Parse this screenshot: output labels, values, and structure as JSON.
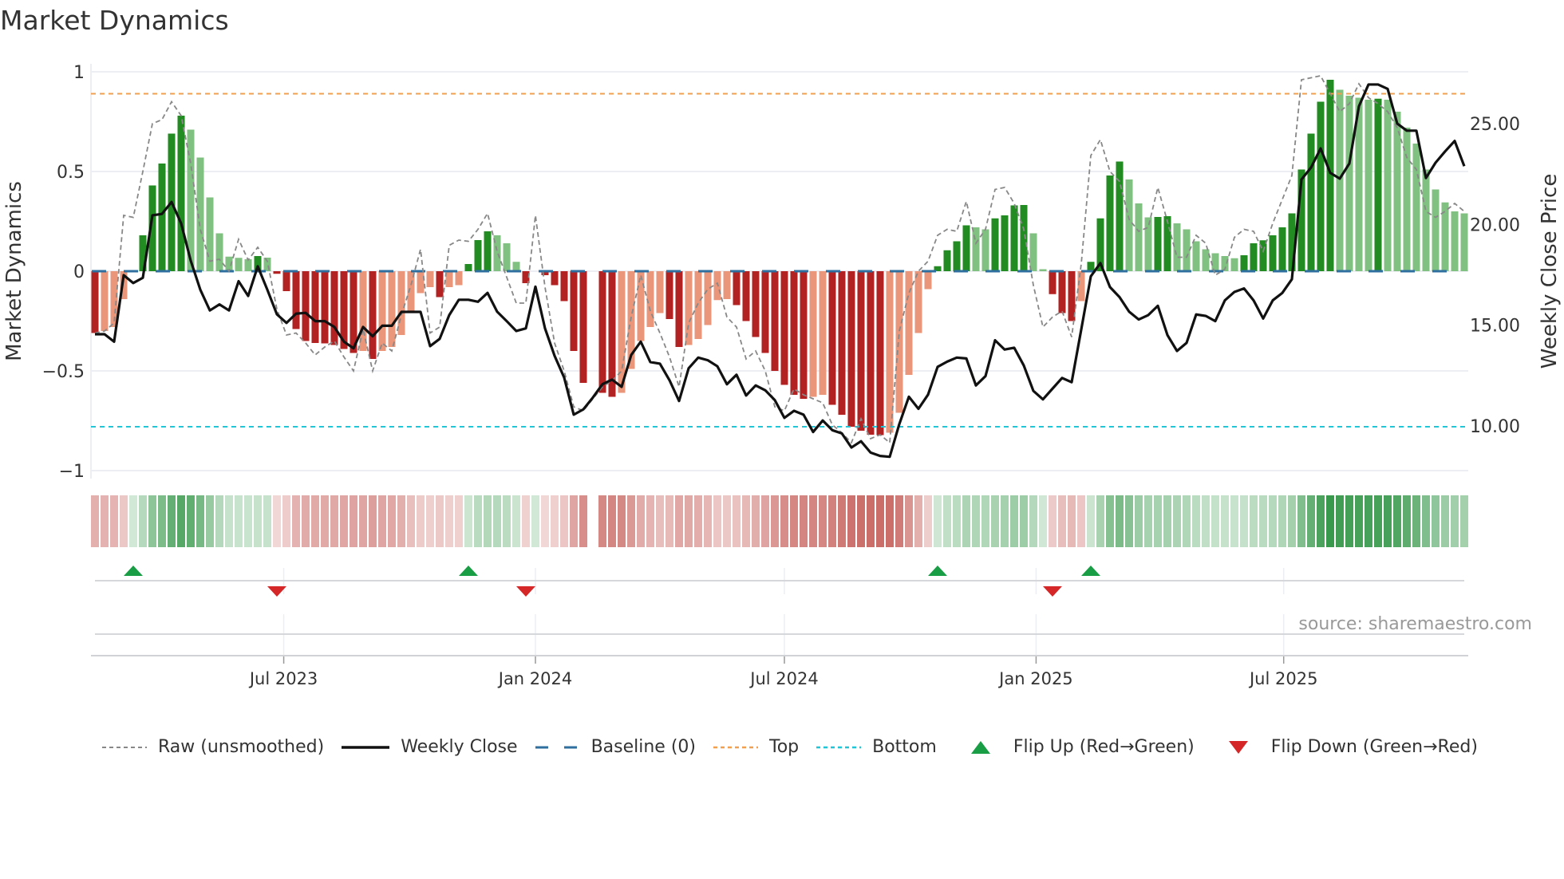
{
  "chart_data": {
    "type": "bar",
    "title": "Market Dynamics",
    "ylabel": "Market Dynamics",
    "y2label": "Weekly Close Price",
    "ylim": [
      -1,
      1
    ],
    "y2lim": [
      7.5,
      28
    ],
    "yticks": [
      {
        "v": 1,
        "label": "1"
      },
      {
        "v": 0.5,
        "label": "0.5"
      },
      {
        "v": 0,
        "label": "0"
      },
      {
        "v": -0.5,
        "label": "−0.5"
      },
      {
        "v": -1,
        "label": "−1"
      }
    ],
    "y2ticks": [
      {
        "v": 25,
        "label": "25.00"
      },
      {
        "v": 20,
        "label": "20.00"
      },
      {
        "v": 15,
        "label": "15.00"
      },
      {
        "v": 10,
        "label": "10.00"
      }
    ],
    "start_week": "2023-02-13",
    "frequency": "weekly",
    "xticks": [
      {
        "date": "2023-07-01",
        "label": "Jul 2023"
      },
      {
        "date": "2024-01-01",
        "label": "Jan 2024"
      },
      {
        "date": "2024-07-01",
        "label": "Jul 2024"
      },
      {
        "date": "2025-01-01",
        "label": "Jan 2025"
      },
      {
        "date": "2025-07-01",
        "label": "Jul 2025"
      }
    ],
    "top_level": 0.89,
    "bottom_level": -0.78,
    "baseline": 0,
    "dynamics": [
      -0.31,
      -0.3,
      -0.28,
      -0.14,
      0,
      0.18,
      0.43,
      0.54,
      0.69,
      0.78,
      0.71,
      0.57,
      0.37,
      0.19,
      0.073,
      0.067,
      0.06,
      0.076,
      0.068,
      -0.013,
      -0.1,
      -0.29,
      -0.35,
      -0.36,
      -0.362,
      -0.37,
      -0.39,
      -0.41,
      -0.4,
      -0.44,
      -0.4,
      -0.38,
      -0.32,
      -0.2,
      -0.11,
      -0.08,
      -0.13,
      -0.08,
      -0.07,
      0.036,
      0.156,
      0.2,
      0.18,
      0.14,
      0.047,
      -0.06,
      0,
      -0.02,
      -0.07,
      -0.15,
      -0.4,
      -0.56,
      null,
      -0.61,
      -0.63,
      -0.61,
      -0.49,
      -0.35,
      -0.28,
      -0.21,
      -0.24,
      -0.38,
      -0.37,
      -0.34,
      -0.27,
      -0.145,
      -0.14,
      -0.17,
      -0.25,
      -0.33,
      -0.41,
      -0.5,
      -0.57,
      -0.62,
      -0.64,
      -0.63,
      -0.62,
      -0.67,
      -0.72,
      -0.78,
      -0.8,
      -0.82,
      -0.822,
      -0.81,
      -0.71,
      -0.52,
      -0.31,
      -0.09,
      0.025,
      0.105,
      0.15,
      0.23,
      0.22,
      0.21,
      0.265,
      0.28,
      0.33,
      0.332,
      0.19,
      0.01,
      -0.115,
      -0.21,
      -0.25,
      -0.15,
      0.047,
      0.265,
      0.48,
      0.55,
      0.46,
      0.34,
      0.27,
      0.272,
      0.276,
      0.24,
      0.21,
      0.15,
      0.11,
      0.09,
      0.076,
      0.065,
      0.08,
      0.14,
      0.155,
      0.18,
      0.22,
      0.29,
      0.51,
      0.69,
      0.85,
      0.96,
      0.91,
      0.88,
      0.87,
      0.86,
      0.865,
      0.86,
      0.8,
      0.72,
      0.64,
      0.51,
      0.41,
      0.345,
      0.3,
      0.29
    ],
    "raw": [
      -0.31,
      -0.3,
      -0.26,
      0.28,
      0.27,
      0.5,
      0.74,
      0.76,
      0.85,
      0.78,
      0.54,
      0.21,
      0.05,
      0.06,
      0.0,
      0.16,
      0.056,
      0.12,
      0.05,
      -0.19,
      -0.32,
      -0.31,
      -0.36,
      -0.42,
      -0.38,
      -0.35,
      -0.43,
      -0.5,
      -0.29,
      -0.5,
      -0.36,
      -0.4,
      -0.22,
      -0.07,
      0.11,
      -0.31,
      -0.28,
      0.13,
      0.156,
      0.15,
      0.21,
      0.29,
      0.1,
      -0.03,
      -0.16,
      -0.16,
      0.28,
      -0.08,
      -0.36,
      -0.5,
      -0.68,
      -0.7,
      -0.64,
      -0.58,
      -0.55,
      -0.5,
      -0.23,
      -0.02,
      -0.2,
      -0.31,
      -0.43,
      -0.58,
      -0.26,
      -0.16,
      -0.09,
      -0.06,
      -0.23,
      -0.28,
      -0.44,
      -0.4,
      -0.5,
      -0.68,
      -0.7,
      -0.59,
      -0.62,
      -0.64,
      -0.66,
      -0.77,
      -0.81,
      -0.86,
      -0.74,
      -0.84,
      -0.82,
      -0.86,
      -0.3,
      -0.11,
      0.0,
      0.05,
      0.18,
      0.21,
      0.2,
      0.35,
      0.14,
      0.21,
      0.41,
      0.42,
      0.34,
      0.21,
      -0.07,
      -0.28,
      -0.23,
      -0.2,
      -0.33,
      0.036,
      0.58,
      0.66,
      0.5,
      0.45,
      0.26,
      0.2,
      0.22,
      0.42,
      0.25,
      0.07,
      0.07,
      0.18,
      0.14,
      -0.02,
      0.01,
      0.17,
      0.21,
      0.2,
      0.1,
      0.24,
      0.36,
      0.48,
      0.96,
      0.97,
      0.98,
      0.89,
      0.8,
      0.84,
      0.94,
      0.87,
      0.84,
      0.8,
      0.72,
      0.57,
      0.51,
      0.3,
      0.27,
      0.3,
      0.34,
      0.3
    ],
    "close": [
      14.55,
      14.55,
      14.18,
      17.48,
      17.09,
      17.35,
      20.45,
      20.52,
      21.11,
      20.05,
      18.2,
      16.76,
      15.73,
      16.03,
      15.73,
      17.18,
      16.45,
      17.92,
      16.76,
      15.54,
      15.11,
      15.57,
      15.61,
      15.2,
      15.2,
      14.91,
      14.18,
      13.85,
      14.91,
      14.45,
      14.97,
      14.97,
      15.66,
      15.66,
      15.66,
      13.96,
      14.32,
      15.5,
      16.26,
      16.26,
      16.16,
      16.6,
      15.67,
      15.2,
      14.71,
      14.84,
      16.91,
      14.84,
      13.48,
      12.4,
      10.56,
      10.82,
      11.41,
      12.07,
      12.3,
      11.94,
      13.52,
      14.18,
      13.17,
      13.09,
      12.27,
      11.24,
      12.86,
      13.39,
      13.26,
      12.96,
      12.07,
      12.54,
      11.51,
      12.01,
      11.77,
      11.28,
      10.4,
      10.75,
      10.56,
      9.7,
      10.27,
      9.79,
      9.63,
      8.93,
      9.24,
      8.68,
      8.51,
      8.47,
      10.09,
      11.45,
      10.85,
      11.55,
      12.93,
      13.19,
      13.39,
      13.35,
      12.01,
      12.47,
      14.25,
      13.79,
      13.88,
      13.0,
      11.74,
      11.32,
      11.85,
      12.38,
      12.17,
      14.78,
      17.42,
      18.08,
      16.89,
      16.39,
      15.67,
      15.28,
      15.5,
      15.96,
      14.51,
      13.72,
      14.12,
      15.53,
      15.46,
      15.2,
      16.23,
      16.65,
      16.82,
      16.23,
      15.33,
      16.23,
      16.6,
      17.28,
      22.23,
      22.82,
      23.77,
      22.56,
      22.27,
      23.02,
      25.86,
      26.94,
      26.94,
      26.72,
      25.0,
      24.65,
      24.65,
      22.3,
      23.06,
      23.62,
      24.14,
      22.89
    ],
    "flip_up_weeks": [
      4,
      39,
      88,
      104
    ],
    "flip_down_weeks": [
      19,
      45,
      100
    ],
    "legend": {
      "position": "bottom",
      "items": [
        {
          "key": "raw",
          "label": "Raw (unsmoothed)"
        },
        {
          "key": "close",
          "label": "Weekly Close"
        },
        {
          "key": "baseline",
          "label": "Baseline (0)"
        },
        {
          "key": "top",
          "label": "Top"
        },
        {
          "key": "bottom",
          "label": "Bottom"
        },
        {
          "key": "flipup",
          "label": "Flip Up (Red→Green)"
        },
        {
          "key": "flipdown",
          "label": "Flip Down (Green→Red)"
        }
      ]
    },
    "source": "source: sharemaestro.com",
    "colors": {
      "green_strong": "#228b22",
      "green_weak": "#80c080",
      "red_strong": "#b22222",
      "red_weak": "#e9967a",
      "raw": "#888888",
      "close": "#111111",
      "baseline": "#2f6f9f",
      "top": "#f0a050",
      "bottom": "#22c5d5",
      "flip_up": "#1a9e45",
      "flip_down": "#d62728"
    }
  }
}
